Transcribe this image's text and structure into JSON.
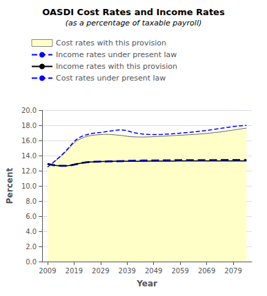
{
  "chart_data": {
    "type": "line",
    "title": "OASDI Cost Rates and Income Rates",
    "subtitle": "(as a percentage of taxable payroll)",
    "xlabel": "Year",
    "ylabel": "Percent",
    "x": [
      2009,
      2010,
      2011,
      2012,
      2013,
      2014,
      2015,
      2016,
      2017,
      2018,
      2019,
      2020,
      2021,
      2022,
      2023,
      2024,
      2025,
      2026,
      2027,
      2028,
      2029,
      2030,
      2031,
      2032,
      2033,
      2034,
      2035,
      2036,
      2037,
      2038,
      2039,
      2040,
      2041,
      2042,
      2043,
      2044,
      2045,
      2046,
      2047,
      2048,
      2049,
      2050,
      2051,
      2052,
      2053,
      2054,
      2055,
      2056,
      2057,
      2058,
      2059,
      2060,
      2061,
      2062,
      2063,
      2064,
      2065,
      2066,
      2067,
      2068,
      2069,
      2070,
      2071,
      2072,
      2073,
      2074,
      2075,
      2076,
      2077,
      2078,
      2079,
      2080,
      2081,
      2082,
      2083,
      2084
    ],
    "series": [
      {
        "name": "Cost rates with this provision",
        "type": "area",
        "color": "#FFFFC8",
        "line_style": "solid",
        "values": [
          12.5,
          12.75,
          13.0,
          13.3,
          13.6,
          13.9,
          14.2,
          14.55,
          14.9,
          15.3,
          15.65,
          15.95,
          16.15,
          16.3,
          16.45,
          16.55,
          16.63,
          16.68,
          16.72,
          16.75,
          16.77,
          16.79,
          16.8,
          16.8,
          16.78,
          16.75,
          16.72,
          16.68,
          16.65,
          16.6,
          16.55,
          16.5,
          16.48,
          16.47,
          16.46,
          16.45,
          16.45,
          16.46,
          16.47,
          16.48,
          16.5,
          16.51,
          16.53,
          16.55,
          16.57,
          16.59,
          16.61,
          16.63,
          16.65,
          16.67,
          16.69,
          16.71,
          16.73,
          16.75,
          16.77,
          16.79,
          16.81,
          16.84,
          16.87,
          16.9,
          16.93,
          16.96,
          17.0,
          17.04,
          17.08,
          17.12,
          17.17,
          17.22,
          17.27,
          17.32,
          17.37,
          17.43,
          17.48,
          17.53,
          17.58,
          17.63
        ]
      },
      {
        "name": "Income rates under present law",
        "type": "line",
        "color": "blue",
        "line_style": "dashed",
        "values": [
          12.9,
          12.82,
          12.75,
          12.7,
          12.67,
          12.65,
          12.64,
          12.65,
          12.68,
          12.73,
          12.8,
          12.88,
          12.96,
          13.03,
          13.08,
          13.12,
          13.15,
          13.17,
          13.19,
          13.2,
          13.21,
          13.22,
          13.22,
          13.23,
          13.23,
          13.24,
          13.25,
          13.26,
          13.27,
          13.28,
          13.29,
          13.3,
          13.31,
          13.32,
          13.33,
          13.33,
          13.34,
          13.34,
          13.35,
          13.35,
          13.36,
          13.36,
          13.37,
          13.37,
          13.37,
          13.38,
          13.38,
          13.38,
          13.39,
          13.39,
          13.39,
          13.4,
          13.4,
          13.4,
          13.4,
          13.4,
          13.4,
          13.4,
          13.4,
          13.4,
          13.4,
          13.4,
          13.4,
          13.4,
          13.41,
          13.41,
          13.41,
          13.41,
          13.41,
          13.41,
          13.42,
          13.42,
          13.42,
          13.42,
          13.42,
          13.42
        ]
      },
      {
        "name": "Income rates with this provision",
        "type": "line",
        "color": "black",
        "line_style": "solid",
        "values": [
          12.9,
          12.82,
          12.75,
          12.7,
          12.67,
          12.65,
          12.64,
          12.65,
          12.68,
          12.73,
          12.8,
          12.88,
          12.96,
          13.03,
          13.08,
          13.12,
          13.15,
          13.17,
          13.19,
          13.2,
          13.21,
          13.22,
          13.22,
          13.23,
          13.23,
          13.24,
          13.24,
          13.24,
          13.25,
          13.25,
          13.25,
          13.25,
          13.25,
          13.26,
          13.26,
          13.26,
          13.26,
          13.26,
          13.27,
          13.27,
          13.27,
          13.27,
          13.27,
          13.28,
          13.28,
          13.28,
          13.28,
          13.28,
          13.28,
          13.29,
          13.29,
          13.29,
          13.29,
          13.29,
          13.29,
          13.3,
          13.3,
          13.3,
          13.3,
          13.3,
          13.3,
          13.3,
          13.3,
          13.3,
          13.3,
          13.3,
          13.3,
          13.3,
          13.3,
          13.3,
          13.3,
          13.3,
          13.3,
          13.3,
          13.3,
          13.3
        ]
      },
      {
        "name": "Cost rates under present law",
        "type": "line",
        "color": "blue",
        "line_style": "dashed",
        "values": [
          12.5,
          12.75,
          13.05,
          13.35,
          13.65,
          13.95,
          14.3,
          14.65,
          15.05,
          15.45,
          15.85,
          16.15,
          16.38,
          16.55,
          16.68,
          16.78,
          16.87,
          16.93,
          16.98,
          17.02,
          17.05,
          17.1,
          17.15,
          17.2,
          17.25,
          17.3,
          17.35,
          17.38,
          17.38,
          17.35,
          17.28,
          17.18,
          17.08,
          17.0,
          16.94,
          16.88,
          16.84,
          16.81,
          16.79,
          16.78,
          16.77,
          16.77,
          16.78,
          16.79,
          16.81,
          16.83,
          16.85,
          16.87,
          16.9,
          16.93,
          16.96,
          16.99,
          17.02,
          17.05,
          17.08,
          17.12,
          17.16,
          17.2,
          17.24,
          17.28,
          17.32,
          17.37,
          17.42,
          17.47,
          17.52,
          17.57,
          17.63,
          17.68,
          17.73,
          17.78,
          17.83,
          17.87,
          17.9,
          17.93,
          17.96,
          17.98
        ]
      }
    ],
    "xlim": [
      2007,
      2086
    ],
    "xticks": [
      2009,
      2019,
      2029,
      2039,
      2049,
      2059,
      2069,
      2079
    ],
    "ylim": [
      0.0,
      20.0
    ],
    "yticks": [
      {
        "value": 0,
        "label": "0.0"
      },
      {
        "value": 2,
        "label": "2.0"
      },
      {
        "value": 4,
        "label": "4.0"
      },
      {
        "value": 6,
        "label": "6.0"
      },
      {
        "value": 8,
        "label": "8.0"
      },
      {
        "value": 10,
        "label": "10.0"
      },
      {
        "value": 12,
        "label": "12.0"
      },
      {
        "value": 14,
        "label": "14.0"
      },
      {
        "value": 16,
        "label": "16.0"
      },
      {
        "value": 18,
        "label": "18.0"
      },
      {
        "value": 20,
        "label": "20.0"
      }
    ],
    "grid": true,
    "legend": "top"
  }
}
